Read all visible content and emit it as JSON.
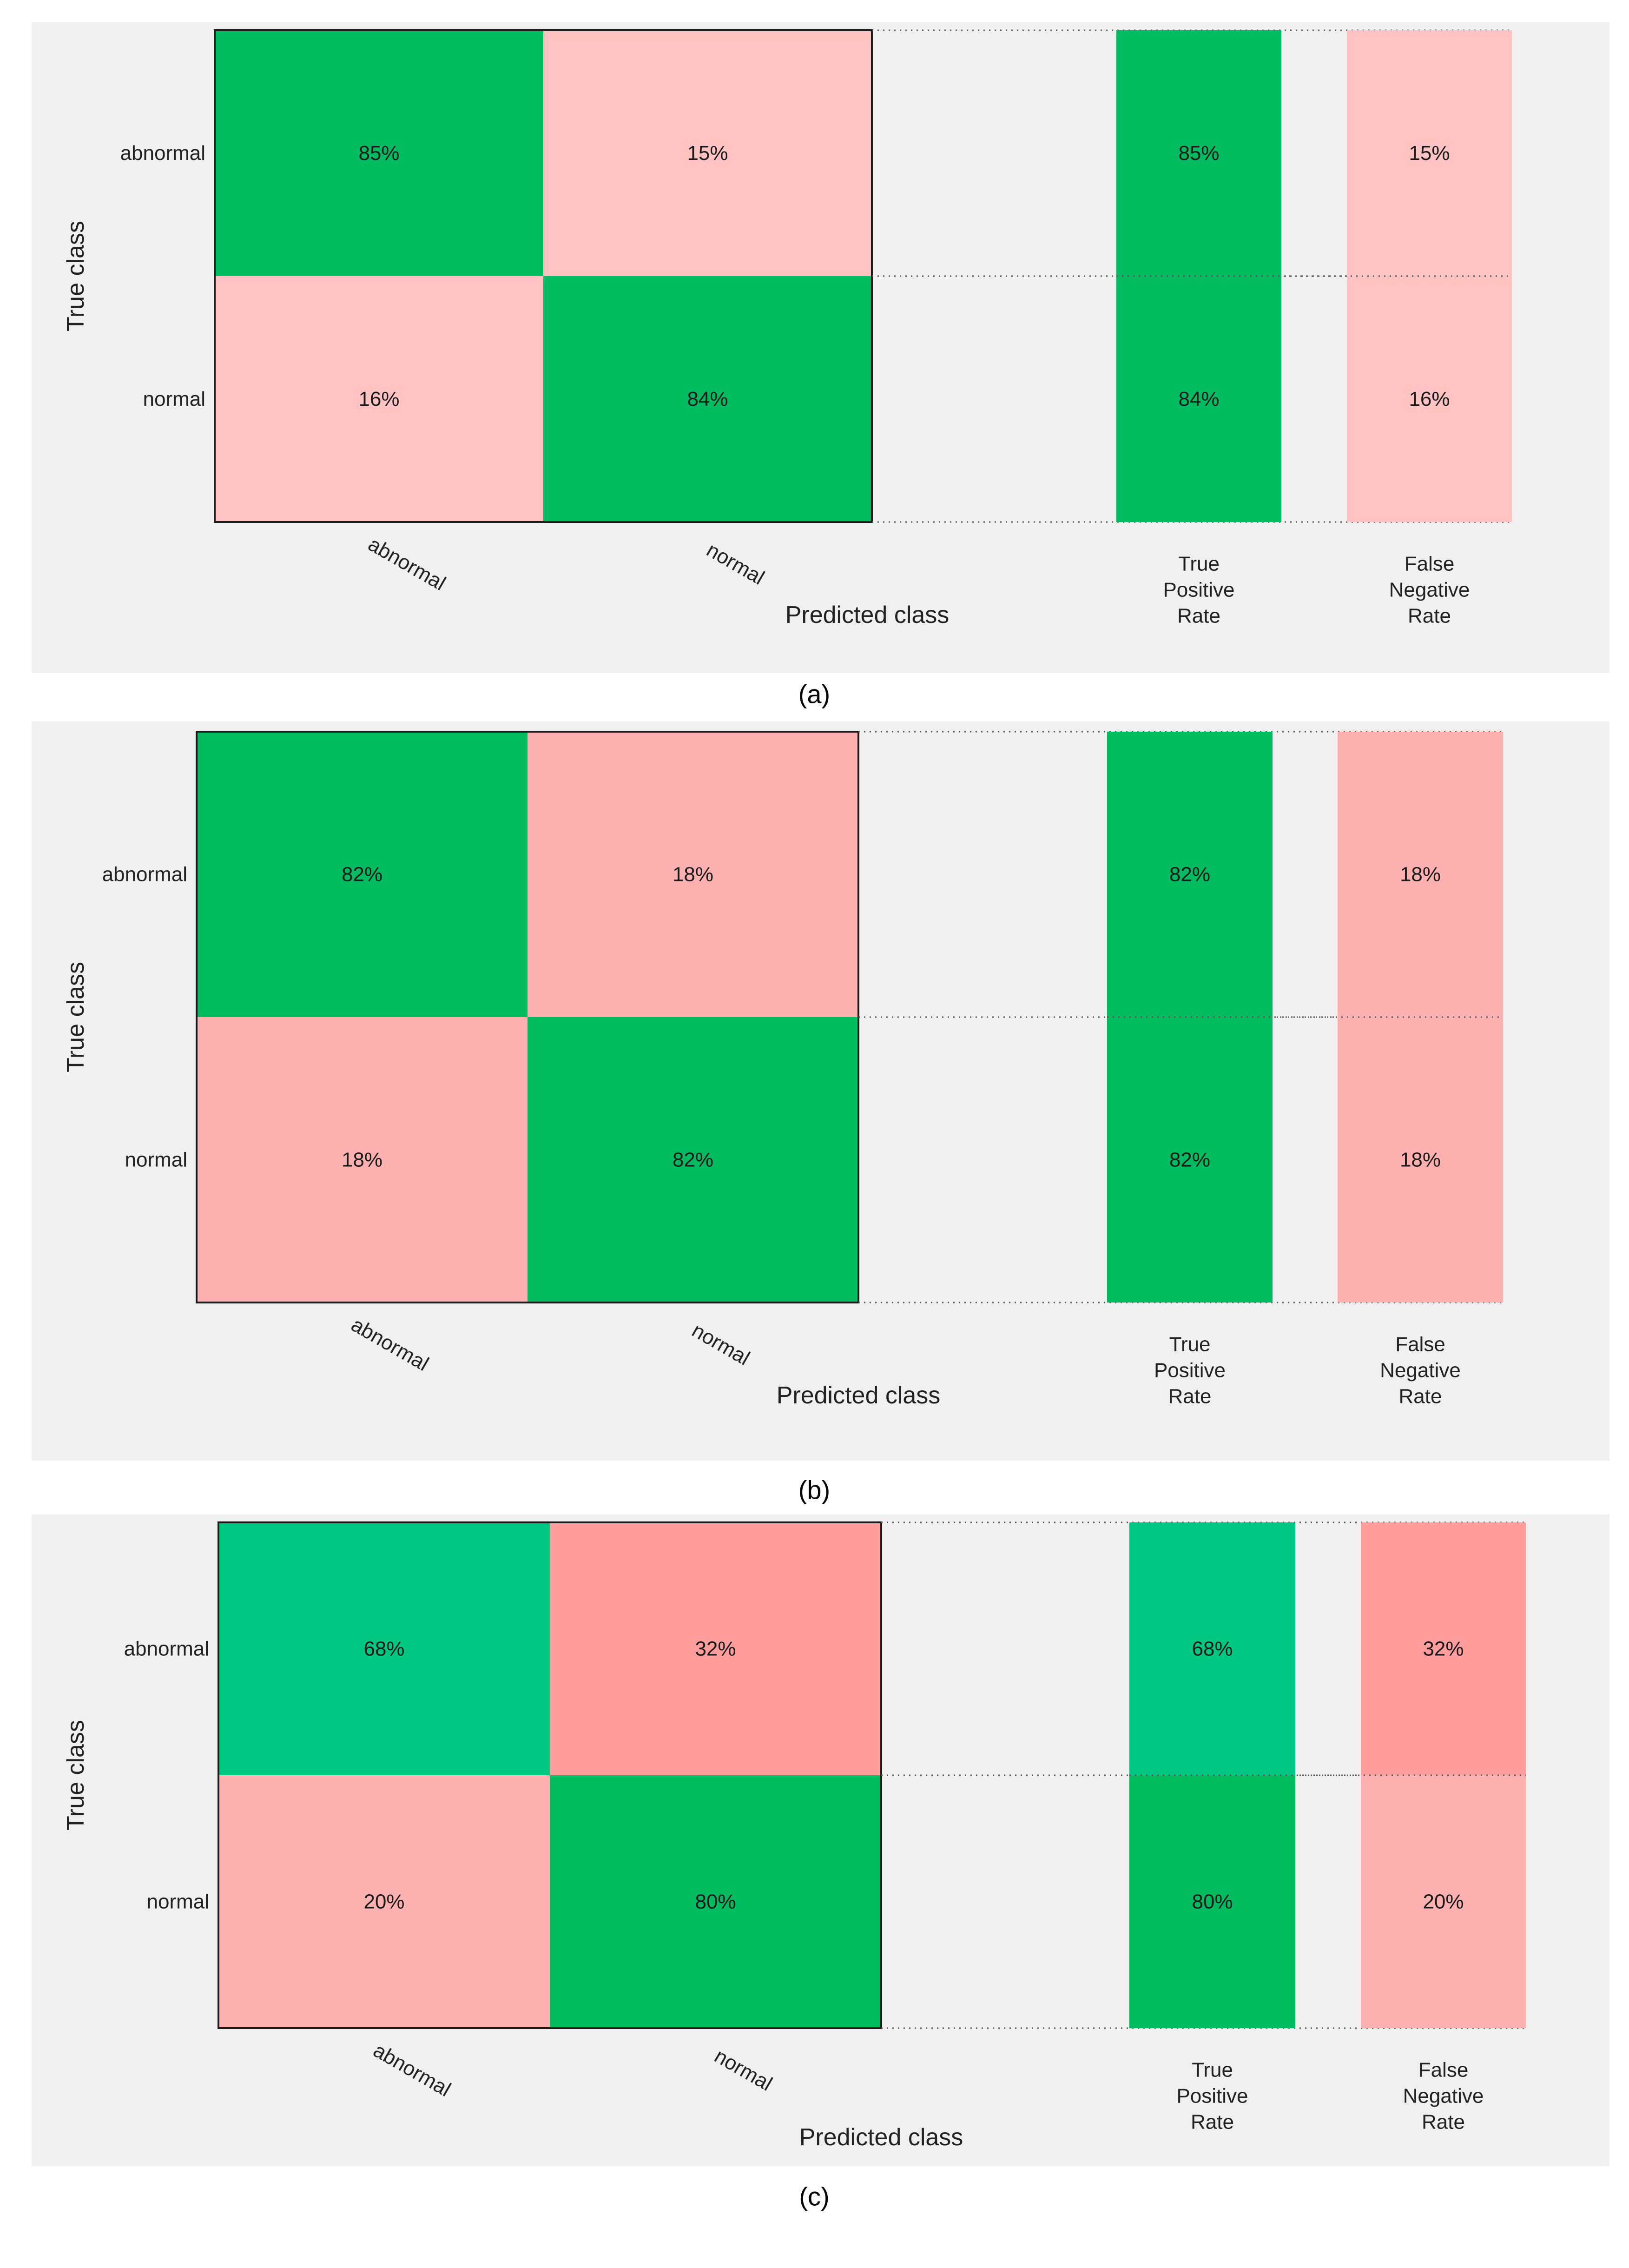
{
  "colors": {
    "background": "#f0f0f0",
    "correct": "#00bb5f",
    "correct_light": "#00c882",
    "error_light": "#ffc3c3",
    "error_medium": "#ffb1b1",
    "error_strong": "#ff9d9d"
  },
  "chart_data": [
    {
      "type": "heatmap",
      "caption": "(a)",
      "ylabel": "True class",
      "xlabel": "Predicted class",
      "row_labels": [
        "abnormal",
        "normal"
      ],
      "col_labels": [
        "abnormal",
        "normal"
      ],
      "matrix": [
        [
          85,
          15
        ],
        [
          16,
          84
        ]
      ],
      "matrix_labels": [
        [
          "85%",
          "15%"
        ],
        [
          "16%",
          "84%"
        ]
      ],
      "summary_headers": [
        [
          "True",
          "Positive",
          "Rate"
        ],
        [
          "False",
          "Negative",
          "Rate"
        ]
      ],
      "tpr": [
        85,
        84
      ],
      "tpr_labels": [
        "85%",
        "84%"
      ],
      "fnr": [
        15,
        16
      ],
      "fnr_labels": [
        "15%",
        "16%"
      ]
    },
    {
      "type": "heatmap",
      "caption": "(b)",
      "ylabel": "True class",
      "xlabel": "Predicted class",
      "row_labels": [
        "abnormal",
        "normal"
      ],
      "col_labels": [
        "abnormal",
        "normal"
      ],
      "matrix": [
        [
          82,
          18
        ],
        [
          18,
          82
        ]
      ],
      "matrix_labels": [
        [
          "82%",
          "18%"
        ],
        [
          "18%",
          "82%"
        ]
      ],
      "summary_headers": [
        [
          "True",
          "Positive",
          "Rate"
        ],
        [
          "False",
          "Negative",
          "Rate"
        ]
      ],
      "tpr": [
        82,
        82
      ],
      "tpr_labels": [
        "82%",
        "82%"
      ],
      "fnr": [
        18,
        18
      ],
      "fnr_labels": [
        "18%",
        "18%"
      ]
    },
    {
      "type": "heatmap",
      "caption": "(c)",
      "ylabel": "True class",
      "xlabel": "Predicted class",
      "row_labels": [
        "abnormal",
        "normal"
      ],
      "col_labels": [
        "abnormal",
        "normal"
      ],
      "matrix": [
        [
          68,
          32
        ],
        [
          20,
          80
        ]
      ],
      "matrix_labels": [
        [
          "68%",
          "32%"
        ],
        [
          "20%",
          "80%"
        ]
      ],
      "summary_headers": [
        [
          "True",
          "Positive",
          "Rate"
        ],
        [
          "False",
          "Negative",
          "Rate"
        ]
      ],
      "tpr": [
        68,
        80
      ],
      "tpr_labels": [
        "68%",
        "80%"
      ],
      "fnr": [
        32,
        20
      ],
      "fnr_labels": [
        "32%",
        "20%"
      ]
    }
  ]
}
